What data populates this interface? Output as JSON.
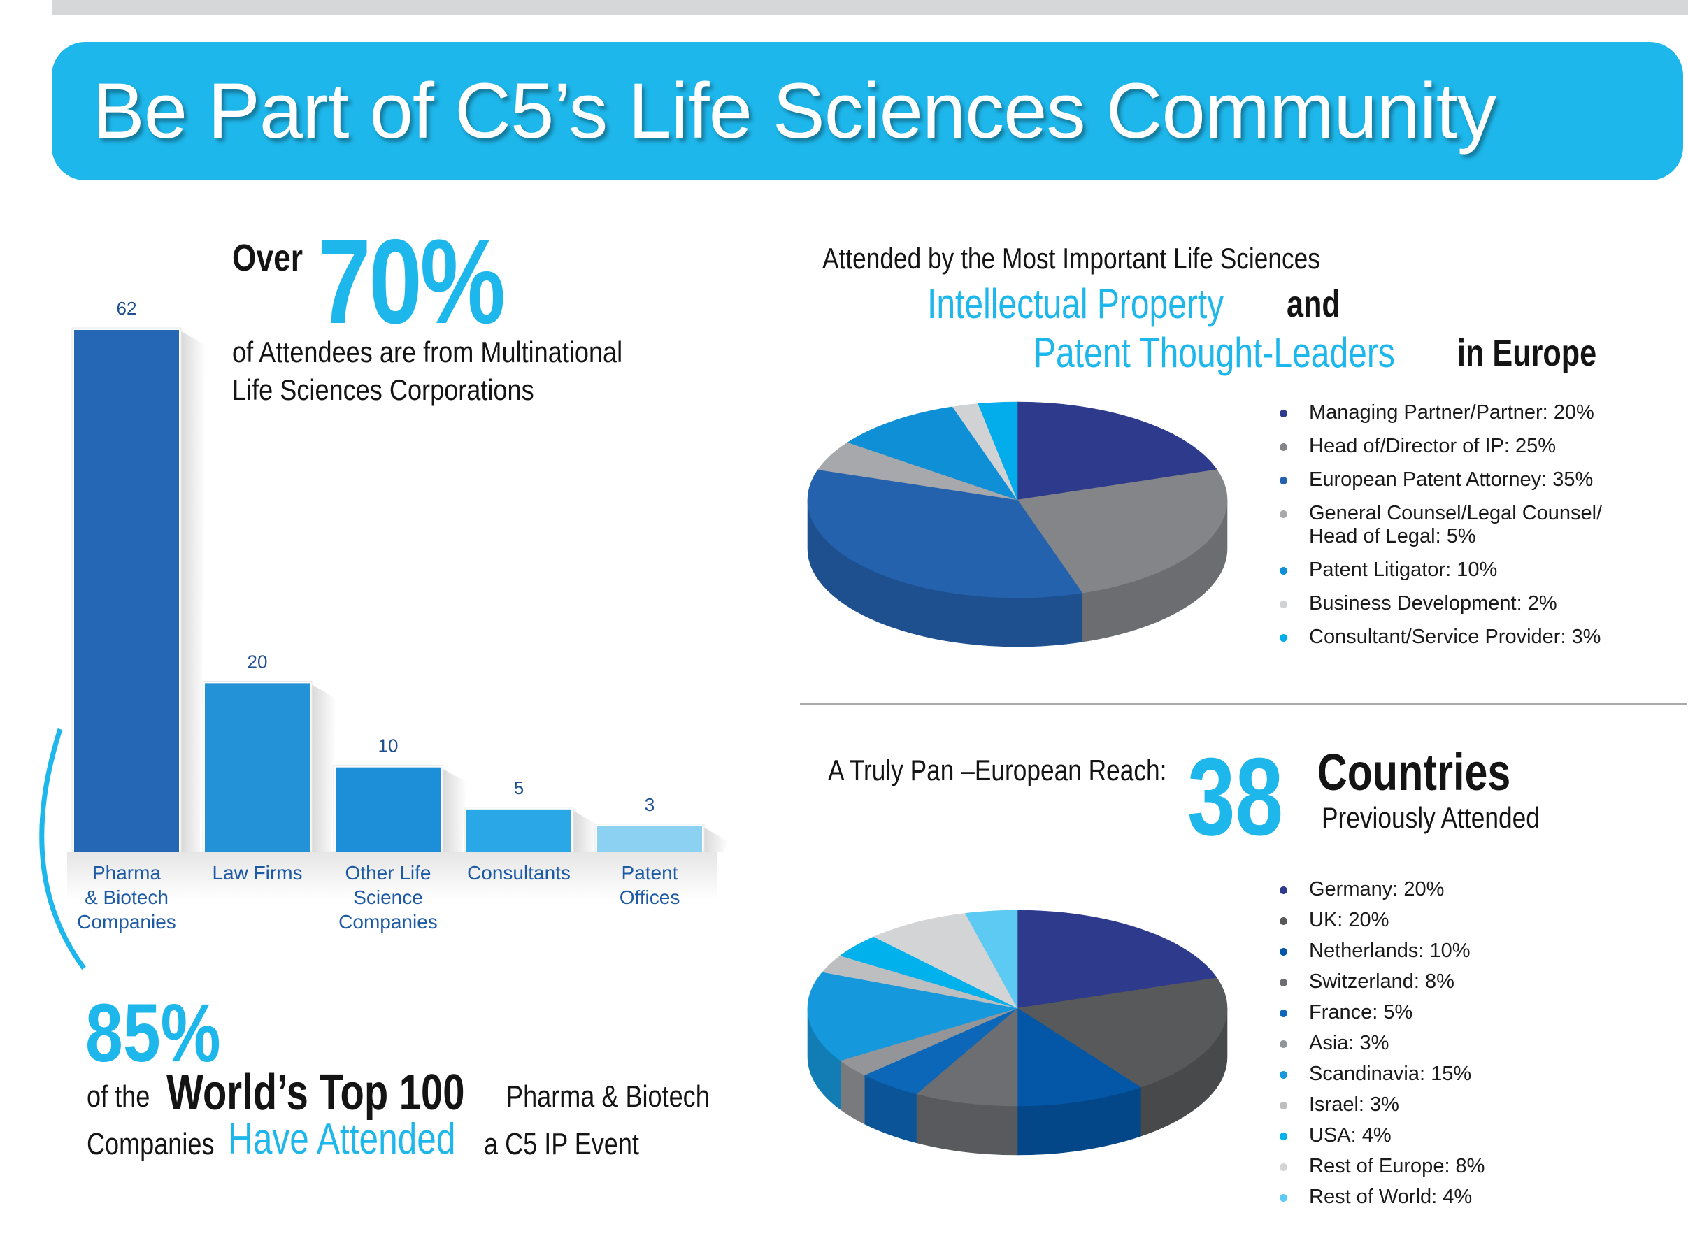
{
  "header": {
    "title": "Be Part of C5’s Life Sciences Community"
  },
  "headline_70": {
    "over": "Over",
    "big": "70%",
    "line1": "of Attendees are from Multinational",
    "line2": "Life Sciences Corporations"
  },
  "headline_85": {
    "big": "85%",
    "of_the": "of the",
    "top100": "World’s Top 100",
    "pharma": "Pharma & Biotech",
    "companies": "Companies",
    "have_attended": "Have Attended",
    "event": "a C5 IP Event"
  },
  "pie1_heading": {
    "line1": "Attended by the Most Important Life Sciences",
    "ip": "Intellectual Property",
    "and": "and",
    "ptl": "Patent Thought-Leaders",
    "in_europe": "in Europe"
  },
  "pie2_heading": {
    "reach": "A Truly Pan –European Reach:",
    "number": "38",
    "countries": "Countries",
    "prev": "Previously Attended"
  },
  "chart_data": [
    {
      "type": "bar",
      "categories": [
        [
          "Pharma",
          "& Biotech",
          "Companies"
        ],
        [
          "Law Firms"
        ],
        [
          "Other Life",
          "Science",
          "Companies"
        ],
        [
          "Consultants"
        ],
        [
          "Patent",
          "Offices"
        ]
      ],
      "values": [
        62,
        20,
        10,
        5,
        3
      ],
      "value_labels": [
        "62",
        "20",
        "10",
        "5",
        "3"
      ],
      "colors": [
        "#2667b5",
        "#2392d6",
        "#1d8fd8",
        "#2aa7e6",
        "#8dd1f2"
      ],
      "ylim": [
        0,
        62
      ]
    },
    {
      "type": "pie",
      "labels": [
        "Managing Partner/Partner: 20%",
        "Head of/Director of IP: 25%",
        "European Patent Attorney: 35%",
        "General Counsel/Legal Counsel/\nHead of Legal: 5%",
        "Patent Litigator: 10%",
        "Business Development: 2%",
        "Consultant/Service Provider: 3%"
      ],
      "values": [
        20,
        25,
        35,
        5,
        10,
        2,
        3
      ],
      "colors": [
        "#2e3a8c",
        "#838588",
        "#2562ae",
        "#a6a8ab",
        "#0e8fd6",
        "#d0d2d4",
        "#03adec"
      ]
    },
    {
      "type": "pie",
      "labels": [
        "Germany: 20%",
        "UK: 20%",
        "Netherlands: 10%",
        "Switzerland: 8%",
        "France: 5%",
        "Asia: 3%",
        "Scandinavia: 15%",
        "Israel: 3%",
        "USA: 4%",
        "Rest of Europe: 8%",
        "Rest of World: 4%"
      ],
      "values": [
        20,
        20,
        10,
        8,
        5,
        3,
        15,
        3,
        4,
        8,
        4
      ],
      "colors": [
        "#2e3a8c",
        "#58595b",
        "#0456a6",
        "#6d6e71",
        "#0c67b8",
        "#939598",
        "#1599dc",
        "#bcbec0",
        "#00b1ec",
        "#d3d4d6",
        "#5ccaf2"
      ]
    }
  ]
}
